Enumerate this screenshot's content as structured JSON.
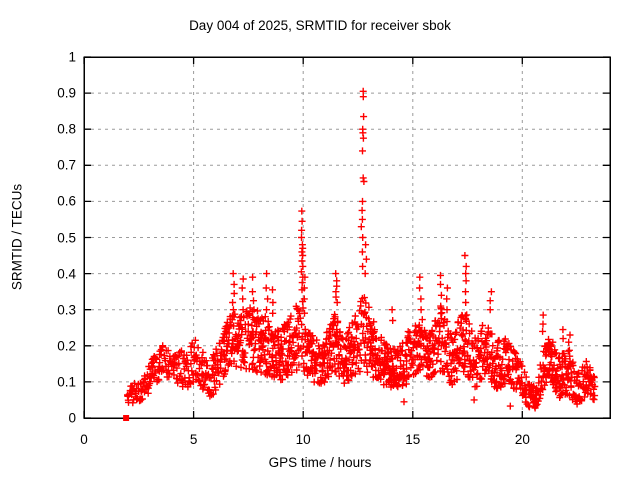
{
  "chart_data": {
    "type": "scatter",
    "title": "Day 004 of 2025, SRMTID for receiver sbok",
    "xlabel": "GPS time / hours",
    "ylabel": "SRMTID / TECUs",
    "xlim": [
      0,
      24
    ],
    "ylim": [
      0,
      1
    ],
    "xticks": [
      0,
      5,
      10,
      15,
      20
    ],
    "xtick_labels": [
      "0",
      "5",
      "10",
      "15",
      "20"
    ],
    "yticks": [
      0,
      0.1,
      0.2,
      0.3,
      0.4,
      0.5,
      0.6,
      0.7,
      0.8,
      0.9,
      1
    ],
    "ytick_labels": [
      "0",
      "0.1",
      "0.2",
      "0.3",
      "0.4",
      "0.5",
      "0.6",
      "0.7",
      "0.8",
      "0.9",
      "1"
    ],
    "grid": true,
    "legend": "none",
    "marker": {
      "shape": "plus",
      "color": "#ff0000",
      "size": 7
    },
    "colors": {
      "marker": "#ff0000",
      "grid": "#9b9b9b",
      "axis": "#000000",
      "text": "#000000",
      "background": "#ffffff"
    },
    "summary": "Dense red plus-marker scatter of SRMTID vs GPS time; data spans ~2h to ~23.3h, main band 0.05-0.35 TECUs, large spike to 0.90 near 12.7h, secondary spikes 0.57 near 10h and 0.45 near 17.4h, quiet dip near 20.5h, lone square point at (1.9, 0).",
    "noise_seed": 20250104,
    "baseline_segments": [
      [
        2.0,
        0.075,
        0.035,
        30
      ],
      [
        2.6,
        0.07,
        0.03,
        30
      ],
      [
        3.0,
        0.11,
        0.04,
        32
      ],
      [
        3.6,
        0.165,
        0.05,
        35
      ],
      [
        4.1,
        0.15,
        0.05,
        35
      ],
      [
        4.6,
        0.13,
        0.05,
        35
      ],
      [
        5.1,
        0.16,
        0.06,
        35
      ],
      [
        5.7,
        0.1,
        0.05,
        38
      ],
      [
        6.2,
        0.15,
        0.06,
        45
      ],
      [
        6.8,
        0.23,
        0.08,
        48
      ],
      [
        7.2,
        0.21,
        0.08,
        50
      ],
      [
        7.7,
        0.22,
        0.09,
        50
      ],
      [
        8.3,
        0.21,
        0.09,
        50
      ],
      [
        8.9,
        0.17,
        0.07,
        50
      ],
      [
        9.4,
        0.2,
        0.08,
        50
      ],
      [
        9.95,
        0.24,
        0.1,
        50
      ],
      [
        10.3,
        0.17,
        0.07,
        50
      ],
      [
        10.9,
        0.15,
        0.06,
        50
      ],
      [
        11.45,
        0.21,
        0.09,
        50
      ],
      [
        11.9,
        0.16,
        0.07,
        50
      ],
      [
        12.4,
        0.21,
        0.09,
        50
      ],
      [
        12.8,
        0.24,
        0.11,
        50
      ],
      [
        13.2,
        0.19,
        0.08,
        50
      ],
      [
        13.7,
        0.15,
        0.06,
        50
      ],
      [
        14.3,
        0.13,
        0.06,
        50
      ],
      [
        14.8,
        0.17,
        0.07,
        50
      ],
      [
        15.3,
        0.21,
        0.08,
        50
      ],
      [
        15.8,
        0.17,
        0.07,
        50
      ],
      [
        16.3,
        0.22,
        0.09,
        50
      ],
      [
        16.8,
        0.16,
        0.07,
        50
      ],
      [
        17.35,
        0.22,
        0.09,
        50
      ],
      [
        17.8,
        0.15,
        0.07,
        50
      ],
      [
        18.3,
        0.19,
        0.08,
        50
      ],
      [
        18.8,
        0.15,
        0.07,
        45
      ],
      [
        19.3,
        0.16,
        0.07,
        45
      ],
      [
        19.8,
        0.13,
        0.06,
        40
      ],
      [
        20.3,
        0.06,
        0.035,
        35
      ],
      [
        20.65,
        0.055,
        0.03,
        35
      ],
      [
        20.95,
        0.14,
        0.06,
        45
      ],
      [
        21.3,
        0.16,
        0.07,
        45
      ],
      [
        21.7,
        0.11,
        0.06,
        50
      ],
      [
        22.1,
        0.13,
        0.07,
        50
      ],
      [
        22.5,
        0.08,
        0.045,
        45
      ],
      [
        22.9,
        0.11,
        0.05,
        45
      ],
      [
        23.3,
        0.08,
        0.04,
        40
      ]
    ],
    "spike_columns": [
      {
        "x": 6.82,
        "ys": [
          0.28,
          0.3,
          0.32,
          0.345,
          0.37,
          0.4
        ]
      },
      {
        "x": 7.25,
        "ys": [
          0.3,
          0.33,
          0.36,
          0.385
        ]
      },
      {
        "x": 7.72,
        "ys": [
          0.3,
          0.325,
          0.35,
          0.39
        ]
      },
      {
        "x": 8.35,
        "ys": [
          0.3,
          0.33,
          0.36,
          0.4
        ]
      },
      {
        "x": 8.6,
        "ys": [
          0.29,
          0.32,
          0.355
        ]
      },
      {
        "x": 9.95,
        "ys": [
          0.355,
          0.375,
          0.39,
          0.405,
          0.42,
          0.435,
          0.45,
          0.46,
          0.47,
          0.48,
          0.5,
          0.52,
          0.545,
          0.573
        ]
      },
      {
        "x": 10.07,
        "ys": [
          0.33,
          0.36,
          0.39
        ]
      },
      {
        "x": 11.52,
        "ys": [
          0.32,
          0.335,
          0.35,
          0.365,
          0.38,
          0.4
        ]
      },
      {
        "x": 12.68,
        "ys": [
          0.42,
          0.46,
          0.5,
          0.53,
          0.55,
          0.575,
          0.6
        ]
      },
      {
        "x": 12.74,
        "ys": [
          0.655,
          0.665,
          0.74,
          0.775,
          0.79,
          0.8,
          0.835,
          0.89,
          0.905
        ]
      },
      {
        "x": 12.85,
        "ys": [
          0.4,
          0.44,
          0.48
        ]
      },
      {
        "x": 14.05,
        "ys": [
          0.27,
          0.3
        ]
      },
      {
        "x": 15.35,
        "ys": [
          0.3,
          0.33,
          0.36,
          0.39
        ]
      },
      {
        "x": 16.3,
        "ys": [
          0.31,
          0.34,
          0.37,
          0.395
        ]
      },
      {
        "x": 16.55,
        "ys": [
          0.3,
          0.33,
          0.36
        ]
      },
      {
        "x": 17.4,
        "ys": [
          0.32,
          0.35,
          0.38,
          0.4,
          0.42,
          0.45
        ]
      },
      {
        "x": 18.55,
        "ys": [
          0.3,
          0.325,
          0.35
        ]
      },
      {
        "x": 20.95,
        "ys": [
          0.24,
          0.26,
          0.285
        ]
      },
      {
        "x": 21.85,
        "ys": [
          0.22,
          0.245
        ]
      },
      {
        "x": 22.15,
        "ys": [
          0.21,
          0.23
        ]
      }
    ],
    "special_points": [
      {
        "x": 1.92,
        "y": 0.0,
        "shape": "square"
      },
      {
        "x": 14.6,
        "y": 0.045,
        "shape": "plus"
      },
      {
        "x": 17.8,
        "y": 0.05,
        "shape": "plus"
      },
      {
        "x": 19.45,
        "y": 0.033,
        "shape": "plus"
      }
    ]
  }
}
